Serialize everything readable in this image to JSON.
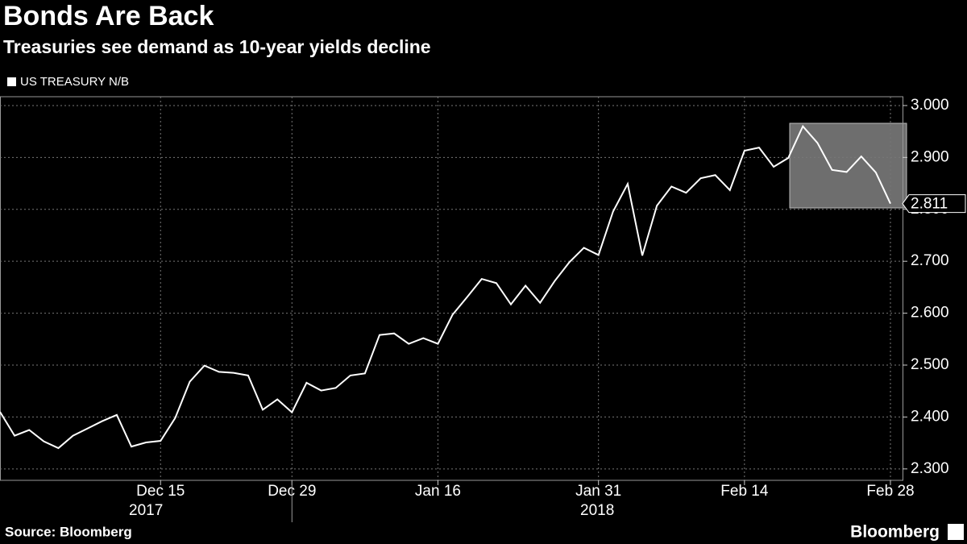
{
  "chart_data": {
    "type": "line",
    "title": "Bonds Are Back",
    "subtitle": "Treasuries see demand as 10-year yields decline",
    "source": "Source: Bloomberg",
    "brand": "Bloomberg",
    "categories": [
      null,
      null,
      null,
      null,
      null,
      null,
      null,
      null,
      null,
      null,
      null,
      "Dec 15",
      null,
      null,
      null,
      null,
      null,
      null,
      null,
      null,
      "Dec 29",
      null,
      null,
      null,
      null,
      null,
      null,
      null,
      null,
      null,
      "Jan 16",
      null,
      null,
      null,
      null,
      null,
      null,
      null,
      null,
      null,
      null,
      "Jan 31",
      null,
      null,
      null,
      null,
      null,
      null,
      null,
      null,
      null,
      "Feb 14",
      null,
      null,
      null,
      null,
      null,
      null,
      null,
      null,
      null,
      "Feb 28"
    ],
    "x_year_labels": [
      "2017",
      "2018"
    ],
    "series": [
      {
        "name": "US TREASURY N/B",
        "color": "#ffffff",
        "values": [
          2.41,
          2.364,
          2.375,
          2.353,
          2.34,
          2.364,
          2.378,
          2.392,
          2.404,
          2.343,
          2.351,
          2.354,
          2.398,
          2.468,
          2.499,
          2.487,
          2.485,
          2.48,
          2.414,
          2.434,
          2.409,
          2.466,
          2.451,
          2.456,
          2.48,
          2.484,
          2.558,
          2.561,
          2.541,
          2.552,
          2.541,
          2.597,
          2.631,
          2.666,
          2.658,
          2.617,
          2.653,
          2.62,
          2.662,
          2.698,
          2.726,
          2.712,
          2.796,
          2.849,
          2.711,
          2.807,
          2.844,
          2.832,
          2.86,
          2.866,
          2.837,
          2.913,
          2.919,
          2.882,
          2.899,
          2.96,
          2.928,
          2.876,
          2.872,
          2.902,
          2.871,
          2.811
        ]
      }
    ],
    "ylim": [
      2.278,
      3.017
    ],
    "yticks": [
      {
        "value": 2.3,
        "label": "2.300"
      },
      {
        "value": 2.4,
        "label": "2.400"
      },
      {
        "value": 2.5,
        "label": "2.500"
      },
      {
        "value": 2.6,
        "label": "2.600"
      },
      {
        "value": 2.7,
        "label": "2.700"
      },
      {
        "value": 2.8,
        "label": "2.800"
      },
      {
        "value": 2.9,
        "label": "2.900"
      },
      {
        "value": 3.0,
        "label": "3.000"
      }
    ],
    "grid": true
  }
}
